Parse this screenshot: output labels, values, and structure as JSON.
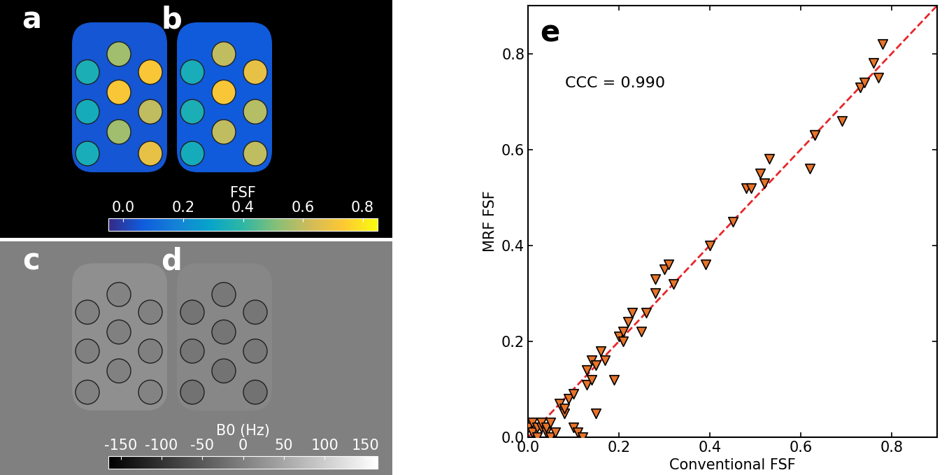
{
  "maps": [
    {
      "label": "a",
      "phantom": 0.05,
      "vials": [
        0.35,
        0.33,
        0.34,
        0.55,
        0.72,
        0.55,
        0.72,
        0.6,
        0.68
      ]
    },
    {
      "label": "b",
      "phantom": 0.06,
      "vials": [
        0.34,
        0.35,
        0.33,
        0.6,
        0.72,
        0.6,
        0.68,
        0.58,
        0.6
      ]
    },
    {
      "label": "c",
      "phantom": 20,
      "vials": [
        2,
        0,
        2,
        4,
        0,
        2,
        2,
        0,
        4
      ]
    },
    {
      "label": "d",
      "phantom": 10,
      "vials": [
        -15,
        -12,
        -18,
        -10,
        -14,
        -16,
        -12,
        -10,
        -18
      ]
    }
  ],
  "colorbars": [
    {
      "label": "FSF",
      "panels": [
        "a",
        "b"
      ],
      "range": [
        -0.05,
        0.85
      ],
      "ticks": [
        0.0,
        0.2,
        0.4,
        0.6,
        0.8
      ]
    },
    {
      "label": "B0 (Hz)",
      "panels": [
        "c",
        "d"
      ],
      "range": [
        -165,
        165
      ],
      "ticks": [
        -150,
        -100,
        -50,
        0,
        50,
        100,
        150
      ]
    }
  ],
  "chart_data": {
    "type": "scatter",
    "panel_label": "e",
    "x_label": "Conventional FSF",
    "y_label": "MRF FSF",
    "annotations": [
      "CCC = 0.990"
    ],
    "xlim": [
      0.0,
      0.9
    ],
    "ylim": [
      0.0,
      0.9
    ],
    "xticks": [
      0.0,
      0.2,
      0.4,
      0.6,
      0.8
    ],
    "yticks": [
      0.0,
      0.2,
      0.4,
      0.6,
      0.8
    ],
    "color": "#e8742a",
    "marker": "triangle_down",
    "x": [
      0.0,
      0.01,
      0.01,
      0.02,
      0.02,
      0.03,
      0.03,
      0.04,
      0.04,
      0.05,
      0.05,
      0.06,
      0.07,
      0.08,
      0.08,
      0.09,
      0.1,
      0.1,
      0.11,
      0.12,
      0.13,
      0.13,
      0.14,
      0.14,
      0.15,
      0.16,
      0.15,
      0.17,
      0.19,
      0.2,
      0.21,
      0.21,
      0.22,
      0.23,
      0.25,
      0.26,
      0.28,
      0.28,
      0.3,
      0.31,
      0.32,
      0.39,
      0.4,
      0.45,
      0.48,
      0.49,
      0.51,
      0.52,
      0.53,
      0.62,
      0.63,
      0.63,
      0.69,
      0.73,
      0.74,
      0.76,
      0.77,
      0.78
    ],
    "y": [
      0.02,
      0.01,
      0.03,
      0.02,
      0.0,
      0.02,
      0.03,
      0.01,
      0.02,
      0.03,
      0.0,
      0.01,
      0.07,
      0.05,
      0.06,
      0.08,
      0.09,
      0.02,
      0.01,
      0.0,
      0.14,
      0.11,
      0.16,
      0.12,
      0.15,
      0.18,
      0.05,
      0.16,
      0.12,
      0.21,
      0.22,
      0.2,
      0.24,
      0.26,
      0.22,
      0.26,
      0.33,
      0.3,
      0.35,
      0.36,
      0.32,
      0.36,
      0.4,
      0.45,
      0.52,
      0.52,
      0.55,
      0.53,
      0.58,
      0.56,
      0.63,
      0.63,
      0.66,
      0.73,
      0.74,
      0.78,
      0.75,
      0.82
    ],
    "reference_line": {
      "x": [
        0.0,
        0.9
      ],
      "y": [
        0.0,
        0.9
      ],
      "color": "#e8262a",
      "line_style": "dashed"
    }
  }
}
